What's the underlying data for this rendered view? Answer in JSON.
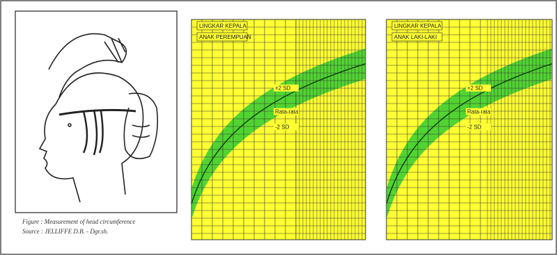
{
  "figure": {
    "caption": "Figure : Measurement of head circumference",
    "source": "Source : JELLIFFE D.B. - Dgr.sh."
  },
  "charts": [
    {
      "title": "LINGKAR KEPALA",
      "subtitle": "ANAK PEREMPUAN",
      "labels": [
        "+2 SD",
        "Rata-rata",
        "-2 SD"
      ]
    },
    {
      "title": "LINGKAR KEPALA",
      "subtitle": "ANAK LAKI-LAKI",
      "labels": [
        "+2 SD",
        "Rata-rata",
        "-2 SD"
      ]
    }
  ]
}
